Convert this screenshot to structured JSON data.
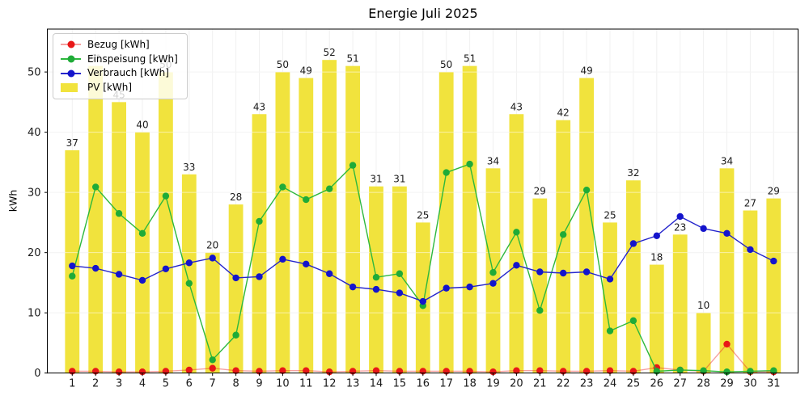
{
  "page": {
    "title": "Energie Juli 2025"
  },
  "chart_data": {
    "type": "bar+line",
    "title": "Energie Juli 2025",
    "ylabel": "kWh",
    "xlabel": "",
    "categories": [
      1,
      2,
      3,
      4,
      5,
      6,
      7,
      8,
      9,
      10,
      11,
      12,
      13,
      14,
      15,
      16,
      17,
      18,
      19,
      20,
      21,
      22,
      23,
      24,
      25,
      26,
      27,
      28,
      29,
      30,
      31
    ],
    "yticks": [
      0,
      10,
      20,
      30,
      40,
      50
    ],
    "ylim": [
      0,
      57
    ],
    "grid": true,
    "legend_position": "upper left",
    "bar_series": {
      "name": "PV [kWh]",
      "color": "#f1e33d",
      "values": [
        37,
        51,
        45,
        40,
        50,
        33,
        20,
        28,
        43,
        50,
        49,
        52,
        51,
        31,
        31,
        25,
        50,
        51,
        34,
        43,
        29,
        42,
        49,
        25,
        32,
        18,
        23,
        10,
        34,
        27,
        29
      ],
      "labels": [
        "37",
        "51",
        "45",
        "40",
        "50",
        "33",
        "20",
        "28",
        "43",
        "50",
        "49",
        "52",
        "51",
        "31",
        "31",
        "25",
        "50",
        "51",
        "34",
        "43",
        "29",
        "42",
        "49",
        "25",
        "32",
        "18",
        "23",
        "10",
        "34",
        "27",
        "29"
      ]
    },
    "line_series": [
      {
        "name": "Bezug [kWh]",
        "color": "#e81717",
        "line_color": "rgba(235,45,45,0.45)",
        "values": [
          0.3,
          0.3,
          0.2,
          0.2,
          0.3,
          0.5,
          0.8,
          0.4,
          0.3,
          0.4,
          0.4,
          0.2,
          0.3,
          0.4,
          0.3,
          0.3,
          0.3,
          0.3,
          0.2,
          0.4,
          0.4,
          0.3,
          0.3,
          0.4,
          0.3,
          0.9,
          0.5,
          0.3,
          4.8,
          0.2,
          0.2
        ]
      },
      {
        "name": "Einspeisung [kWh]",
        "color": "#1fab38",
        "line_color": "#2db83d",
        "values": [
          16.1,
          30.9,
          26.5,
          23.2,
          29.4,
          14.9,
          2.2,
          6.3,
          25.2,
          30.9,
          28.8,
          30.6,
          34.5,
          15.9,
          16.5,
          11.2,
          33.3,
          34.7,
          16.7,
          23.4,
          10.4,
          23.0,
          30.4,
          7.0,
          8.7,
          0.3,
          0.5,
          0.4,
          0.2,
          0.3,
          0.4
        ]
      },
      {
        "name": "Verbrauch [kWh]",
        "color": "#1414cc",
        "line_color": "#2424cc",
        "values": [
          17.8,
          17.4,
          16.4,
          15.4,
          17.3,
          18.3,
          19.1,
          15.8,
          16.0,
          18.9,
          18.1,
          16.5,
          14.3,
          13.9,
          13.3,
          11.9,
          14.1,
          14.3,
          14.9,
          17.9,
          16.8,
          16.6,
          16.8,
          15.6,
          21.5,
          22.8,
          26.0,
          24.0,
          23.2,
          20.5,
          18.6
        ]
      }
    ],
    "colors": {
      "grid": "#e9e9e9",
      "spine": "#000000",
      "text": "#1a1a1a"
    }
  }
}
